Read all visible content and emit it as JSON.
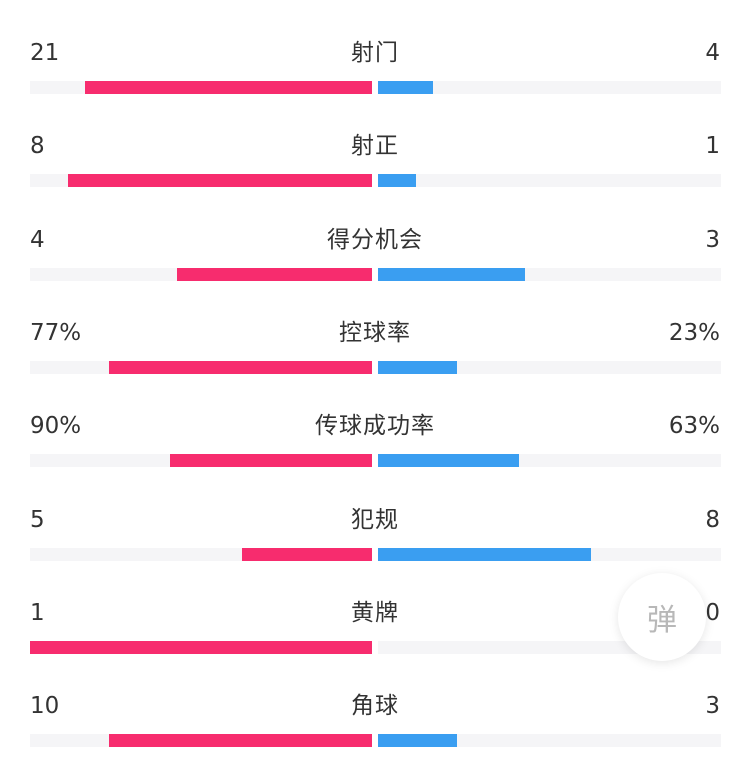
{
  "colors": {
    "home": "#f72c6e",
    "away": "#3a9ef1",
    "track": "#f5f5f7",
    "text": "#333333"
  },
  "stats": [
    {
      "label": "射门",
      "home": "21",
      "away": "4",
      "home_share": 0.84,
      "away_share": 0.16
    },
    {
      "label": "射正",
      "home": "8",
      "away": "1",
      "home_share": 0.89,
      "away_share": 0.11
    },
    {
      "label": "得分机会",
      "home": "4",
      "away": "3",
      "home_share": 0.57,
      "away_share": 0.43
    },
    {
      "label": "控球率",
      "home": "77%",
      "away": "23%",
      "home_share": 0.77,
      "away_share": 0.23
    },
    {
      "label": "传球成功率",
      "home": "90%",
      "away": "63%",
      "home_share": 0.59,
      "away_share": 0.41
    },
    {
      "label": "犯规",
      "home": "5",
      "away": "8",
      "home_share": 0.38,
      "away_share": 0.62
    },
    {
      "label": "黄牌",
      "home": "1",
      "away": "0",
      "home_share": 1.0,
      "away_share": 0.0
    },
    {
      "label": "角球",
      "home": "10",
      "away": "3",
      "home_share": 0.77,
      "away_share": 0.23
    }
  ],
  "danmu_button": {
    "label": "弹"
  }
}
